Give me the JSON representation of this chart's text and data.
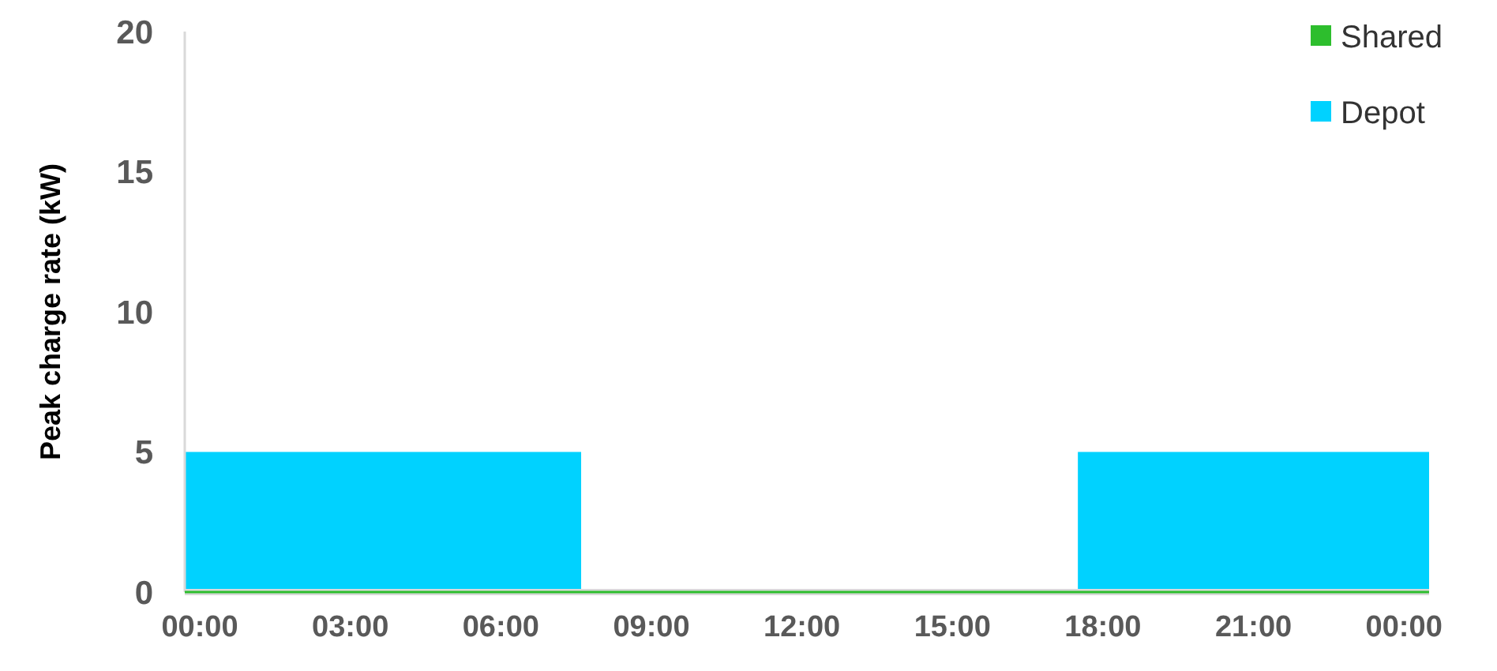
{
  "chart_data": {
    "type": "area",
    "ylabel": "Peak charge rate (kW)",
    "x": [
      -0.3,
      7.6,
      7.6,
      17.5,
      17.5,
      24.5
    ],
    "series": [
      {
        "name": "Depot",
        "color": "#00d2ff",
        "values": [
          5,
          5,
          0,
          0,
          5,
          5
        ]
      },
      {
        "name": "Shared",
        "type": "line",
        "color": "#2dbe2d",
        "values": [
          0,
          0,
          0,
          0,
          0,
          0
        ]
      }
    ],
    "xlim": [
      -0.3,
      24.5
    ],
    "xticks": [
      {
        "value": 0,
        "label": "00:00"
      },
      {
        "value": 3,
        "label": "03:00"
      },
      {
        "value": 6,
        "label": "06:00"
      },
      {
        "value": 9,
        "label": "09:00"
      },
      {
        "value": 12,
        "label": "12:00"
      },
      {
        "value": 15,
        "label": "15:00"
      },
      {
        "value": 18,
        "label": "18:00"
      },
      {
        "value": 21,
        "label": "21:00"
      },
      {
        "value": 24,
        "label": "00:00"
      }
    ],
    "ylim": [
      0,
      20
    ],
    "yticks": [
      0,
      5,
      10,
      15,
      20
    ],
    "grid": false,
    "legend": "top right"
  }
}
